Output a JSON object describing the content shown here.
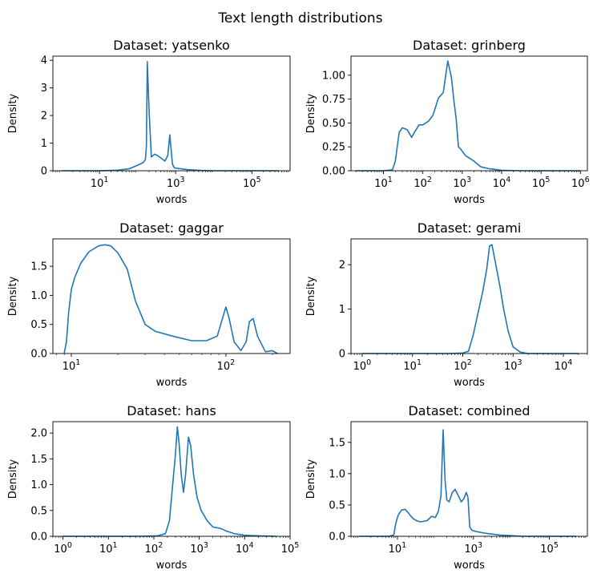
{
  "figure_title": "Text length distributions",
  "chart_data": [
    {
      "type": "line",
      "title": "Dataset: yatsenko",
      "xlabel": "words",
      "ylabel": "Density",
      "xscale": "log",
      "xlim": [
        0.6,
        1000000
      ],
      "ylim": [
        0,
        4.15
      ],
      "xticks": [
        {
          "v": 10,
          "base": "10",
          "exp": "1"
        },
        {
          "v": 1000,
          "base": "10",
          "exp": "3"
        },
        {
          "v": 100000,
          "base": "10",
          "exp": "5"
        }
      ],
      "yticks": [
        {
          "v": 0,
          "label": "0"
        },
        {
          "v": 1,
          "label": "1"
        },
        {
          "v": 2,
          "label": "2"
        },
        {
          "v": 3,
          "label": "3"
        },
        {
          "v": 4,
          "label": "4"
        }
      ],
      "series": [
        {
          "color": "#1f77b4",
          "x": [
            1,
            10,
            30,
            60,
            100,
            120,
            140,
            150,
            160,
            170,
            180,
            200,
            230,
            280,
            330,
            420,
            520,
            620,
            700,
            780,
            820,
            880,
            950,
            1200,
            2000,
            5000,
            10000,
            100000,
            500000
          ],
          "y": [
            0,
            0,
            0.02,
            0.07,
            0.2,
            0.25,
            0.3,
            0.35,
            0.4,
            0.9,
            3.95,
            2.2,
            0.5,
            0.6,
            0.55,
            0.45,
            0.35,
            0.55,
            1.3,
            0.6,
            0.25,
            0.15,
            0.1,
            0.08,
            0.04,
            0.01,
            0,
            0,
            0
          ]
        }
      ]
    },
    {
      "type": "line",
      "title": "Dataset: grinberg",
      "xlabel": "words",
      "ylabel": "Density",
      "xscale": "log",
      "xlim": [
        1.5,
        1500000
      ],
      "ylim": [
        0,
        1.2
      ],
      "xticks": [
        {
          "v": 10,
          "base": "10",
          "exp": "1"
        },
        {
          "v": 100,
          "base": "10",
          "exp": "2"
        },
        {
          "v": 1000,
          "base": "10",
          "exp": "3"
        },
        {
          "v": 10000,
          "base": "10",
          "exp": "4"
        },
        {
          "v": 100000,
          "base": "10",
          "exp": "5"
        },
        {
          "v": 1000000,
          "base": "10",
          "exp": "6"
        }
      ],
      "yticks": [
        {
          "v": 0,
          "label": "0.00"
        },
        {
          "v": 0.25,
          "label": "0.25"
        },
        {
          "v": 0.5,
          "label": "0.50"
        },
        {
          "v": 0.75,
          "label": "0.75"
        },
        {
          "v": 1.0,
          "label": "1.00"
        }
      ],
      "series": [
        {
          "color": "#1f77b4",
          "x": [
            2,
            10,
            17,
            20,
            25,
            30,
            40,
            52,
            65,
            80,
            100,
            140,
            180,
            250,
            330,
            430,
            530,
            620,
            700,
            800,
            900,
            1200,
            2000,
            3000,
            5000,
            10000,
            30000,
            1000000
          ],
          "y": [
            0,
            0,
            0.01,
            0.1,
            0.4,
            0.45,
            0.43,
            0.35,
            0.42,
            0.48,
            0.48,
            0.52,
            0.58,
            0.76,
            0.82,
            1.15,
            0.98,
            0.72,
            0.55,
            0.25,
            0.23,
            0.16,
            0.1,
            0.04,
            0.02,
            0.005,
            0,
            0
          ]
        }
      ]
    },
    {
      "type": "line",
      "title": "Dataset: gaggar",
      "xlabel": "words",
      "ylabel": "Density",
      "xscale": "log",
      "xlim": [
        7.6,
        260
      ],
      "ylim": [
        0,
        1.97
      ],
      "xticks": [
        {
          "v": 10,
          "base": "10",
          "exp": "1"
        },
        {
          "v": 100,
          "base": "10",
          "exp": "2"
        }
      ],
      "yticks": [
        {
          "v": 0,
          "label": "0.0"
        },
        {
          "v": 0.5,
          "label": "0.5"
        },
        {
          "v": 1.0,
          "label": "1.0"
        },
        {
          "v": 1.5,
          "label": "1.5"
        }
      ],
      "series": [
        {
          "color": "#1f77b4",
          "x": [
            9,
            9.3,
            9.6,
            10,
            10.5,
            11.5,
            13,
            15,
            16.5,
            18,
            20,
            23,
            26,
            30,
            35,
            45,
            60,
            75,
            88,
            95,
            100,
            105,
            113,
            125,
            135,
            142,
            150,
            160,
            180,
            200,
            215
          ],
          "y": [
            0.01,
            0.2,
            0.7,
            1.1,
            1.3,
            1.55,
            1.75,
            1.85,
            1.87,
            1.85,
            1.73,
            1.45,
            0.9,
            0.5,
            0.38,
            0.3,
            0.22,
            0.22,
            0.3,
            0.6,
            0.8,
            0.6,
            0.2,
            0.05,
            0.2,
            0.55,
            0.6,
            0.3,
            0.03,
            0.05,
            0
          ]
        }
      ]
    },
    {
      "type": "line",
      "title": "Dataset: gerami",
      "xlabel": "words",
      "ylabel": "Density",
      "xscale": "log",
      "xlim": [
        0.6,
        30000
      ],
      "ylim": [
        0,
        2.58
      ],
      "xticks": [
        {
          "v": 1,
          "base": "10",
          "exp": "0"
        },
        {
          "v": 10,
          "base": "10",
          "exp": "1"
        },
        {
          "v": 100,
          "base": "10",
          "exp": "2"
        },
        {
          "v": 1000,
          "base": "10",
          "exp": "3"
        },
        {
          "v": 10000,
          "base": "10",
          "exp": "4"
        }
      ],
      "yticks": [
        {
          "v": 0,
          "label": "0"
        },
        {
          "v": 1,
          "label": "1"
        },
        {
          "v": 2,
          "label": "2"
        }
      ],
      "series": [
        {
          "color": "#1f77b4",
          "x": [
            1,
            50,
            100,
            130,
            160,
            200,
            250,
            300,
            340,
            380,
            420,
            480,
            550,
            650,
            800,
            1000,
            1400,
            2000,
            20000
          ],
          "y": [
            0,
            0,
            0.01,
            0.05,
            0.4,
            0.9,
            1.4,
            1.9,
            2.42,
            2.45,
            2.2,
            1.85,
            1.5,
            1.0,
            0.5,
            0.15,
            0.03,
            0,
            0
          ]
        }
      ]
    },
    {
      "type": "line",
      "title": "Dataset: hans",
      "xlabel": "words",
      "ylabel": "Density",
      "xscale": "log",
      "xlim": [
        0.6,
        100000
      ],
      "ylim": [
        0,
        2.22
      ],
      "xticks": [
        {
          "v": 1,
          "base": "10",
          "exp": "0"
        },
        {
          "v": 10,
          "base": "10",
          "exp": "1"
        },
        {
          "v": 100,
          "base": "10",
          "exp": "2"
        },
        {
          "v": 1000,
          "base": "10",
          "exp": "3"
        },
        {
          "v": 10000,
          "base": "10",
          "exp": "4"
        },
        {
          "v": 100000,
          "base": "10",
          "exp": "5"
        }
      ],
      "yticks": [
        {
          "v": 0,
          "label": "0.0"
        },
        {
          "v": 0.5,
          "label": "0.5"
        },
        {
          "v": 1.0,
          "label": "1.0"
        },
        {
          "v": 1.5,
          "label": "1.5"
        },
        {
          "v": 2.0,
          "label": "2.0"
        }
      ],
      "series": [
        {
          "color": "#1f77b4",
          "x": [
            1,
            50,
            120,
            180,
            220,
            260,
            300,
            330,
            360,
            400,
            450,
            500,
            580,
            650,
            750,
            900,
            1100,
            1500,
            2000,
            3000,
            4000,
            6000,
            10000,
            20000,
            50000
          ],
          "y": [
            0,
            0,
            0.01,
            0.05,
            0.3,
            1.0,
            1.6,
            2.12,
            1.8,
            1.2,
            0.85,
            1.2,
            1.92,
            1.75,
            1.2,
            0.75,
            0.5,
            0.3,
            0.18,
            0.15,
            0.1,
            0.05,
            0.02,
            0.01,
            0
          ]
        }
      ]
    },
    {
      "type": "line",
      "title": "Dataset: combined",
      "xlabel": "words",
      "ylabel": "Density",
      "xscale": "log",
      "xlim": [
        0.6,
        1000000
      ],
      "ylim": [
        0,
        1.83
      ],
      "xticks": [
        {
          "v": 10,
          "base": "10",
          "exp": "1"
        },
        {
          "v": 1000,
          "base": "10",
          "exp": "3"
        },
        {
          "v": 100000,
          "base": "10",
          "exp": "5"
        }
      ],
      "yticks": [
        {
          "v": 0,
          "label": "0.0"
        },
        {
          "v": 0.5,
          "label": "0.5"
        },
        {
          "v": 1.0,
          "label": "1.0"
        },
        {
          "v": 1.5,
          "label": "1.5"
        }
      ],
      "series": [
        {
          "color": "#1f77b4",
          "x": [
            1,
            6,
            8,
            9,
            10,
            11,
            13,
            16,
            19,
            22,
            26,
            32,
            40,
            60,
            80,
            100,
            120,
            140,
            160,
            180,
            200,
            230,
            280,
            330,
            400,
            480,
            560,
            650,
            720,
            800,
            900,
            1100,
            2000,
            5000,
            20000,
            100000,
            500000
          ],
          "y": [
            0,
            0,
            0.02,
            0.2,
            0.3,
            0.36,
            0.42,
            0.43,
            0.38,
            0.33,
            0.28,
            0.25,
            0.23,
            0.25,
            0.32,
            0.3,
            0.4,
            0.65,
            1.7,
            0.9,
            0.58,
            0.55,
            0.7,
            0.75,
            0.65,
            0.55,
            0.6,
            0.7,
            0.62,
            0.15,
            0.1,
            0.08,
            0.05,
            0.02,
            0,
            0,
            0
          ]
        }
      ]
    }
  ]
}
